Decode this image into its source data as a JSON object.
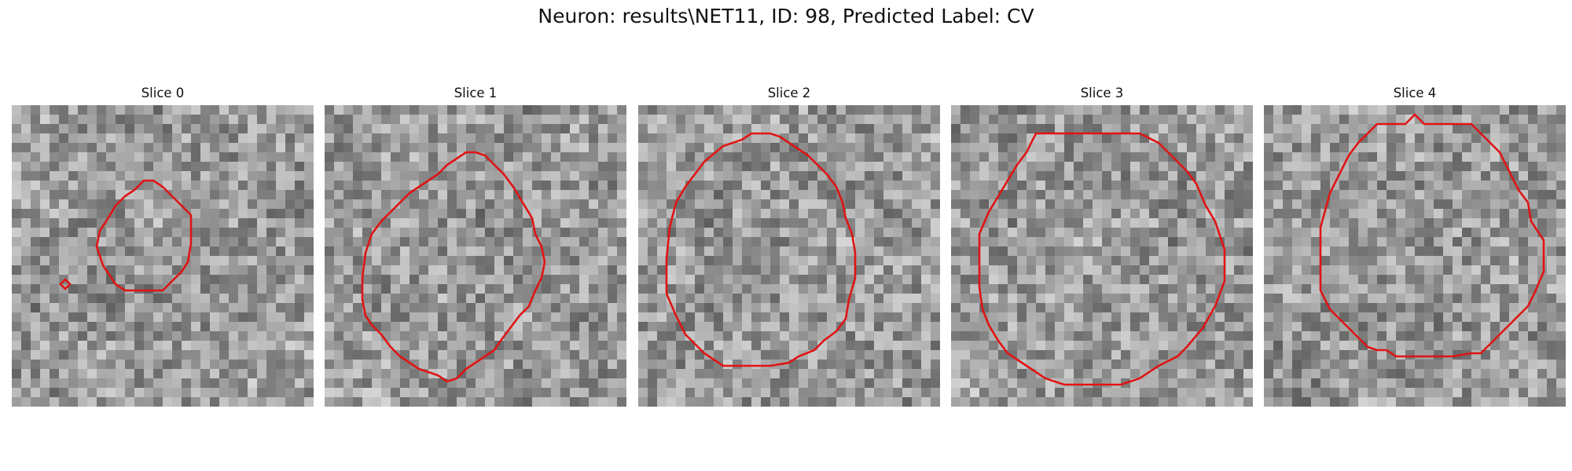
{
  "title": "Neuron: results\\NET11, ID: 98, Predicted Label: CV",
  "contour_color": "#e01414",
  "slices": [
    {
      "label": "Slice 0"
    },
    {
      "label": "Slice 1"
    },
    {
      "label": "Slice 2"
    },
    {
      "label": "Slice 3"
    },
    {
      "label": "Slice 4"
    }
  ]
}
